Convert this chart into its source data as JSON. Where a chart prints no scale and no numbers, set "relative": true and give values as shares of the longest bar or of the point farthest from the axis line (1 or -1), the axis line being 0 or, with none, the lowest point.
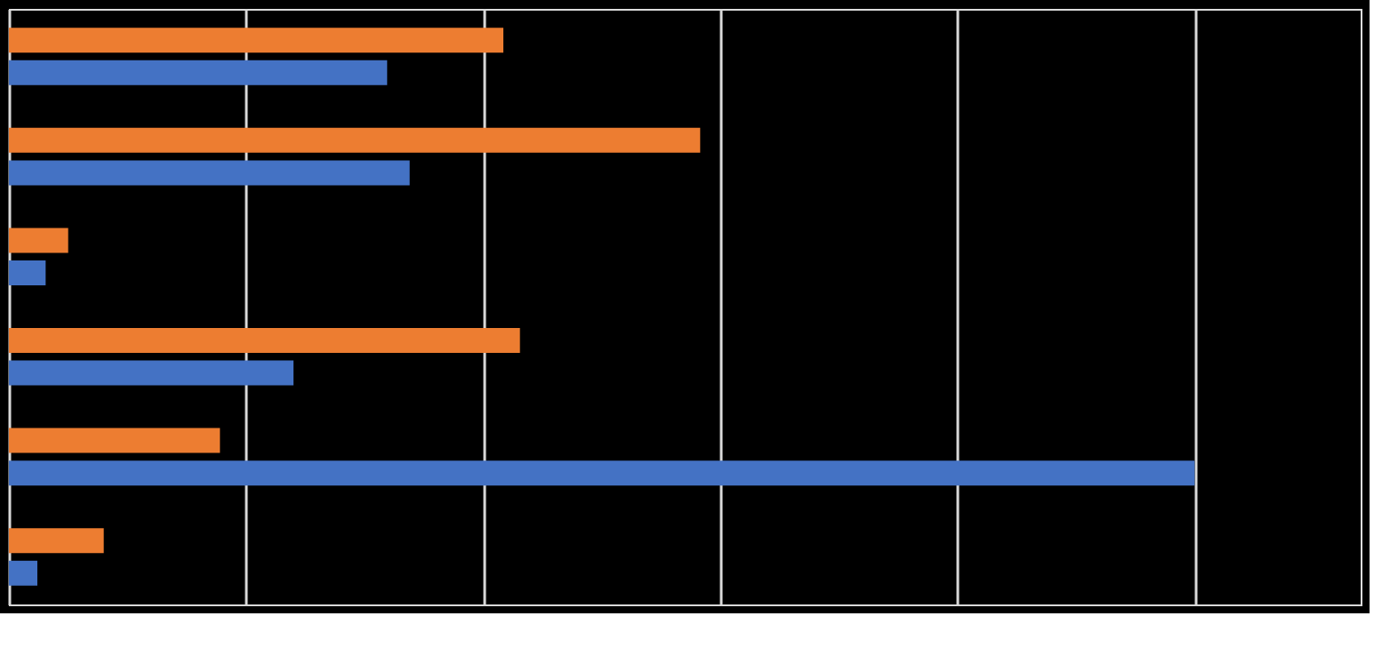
{
  "chart_data": {
    "type": "bar",
    "orientation": "horizontal",
    "relative": true,
    "grid": "x",
    "legend": false,
    "tick_labels": false,
    "categories": [
      null,
      null,
      null,
      null,
      null,
      null
    ],
    "series": [
      {
        "color": "#ed7d31",
        "values": [
          0.417,
          0.583,
          0.05,
          0.431,
          0.178,
          0.08
        ]
      },
      {
        "color": "#4472c4",
        "values": [
          0.319,
          0.338,
          0.031,
          0.24,
          1,
          0.024
        ]
      }
    ]
  }
}
